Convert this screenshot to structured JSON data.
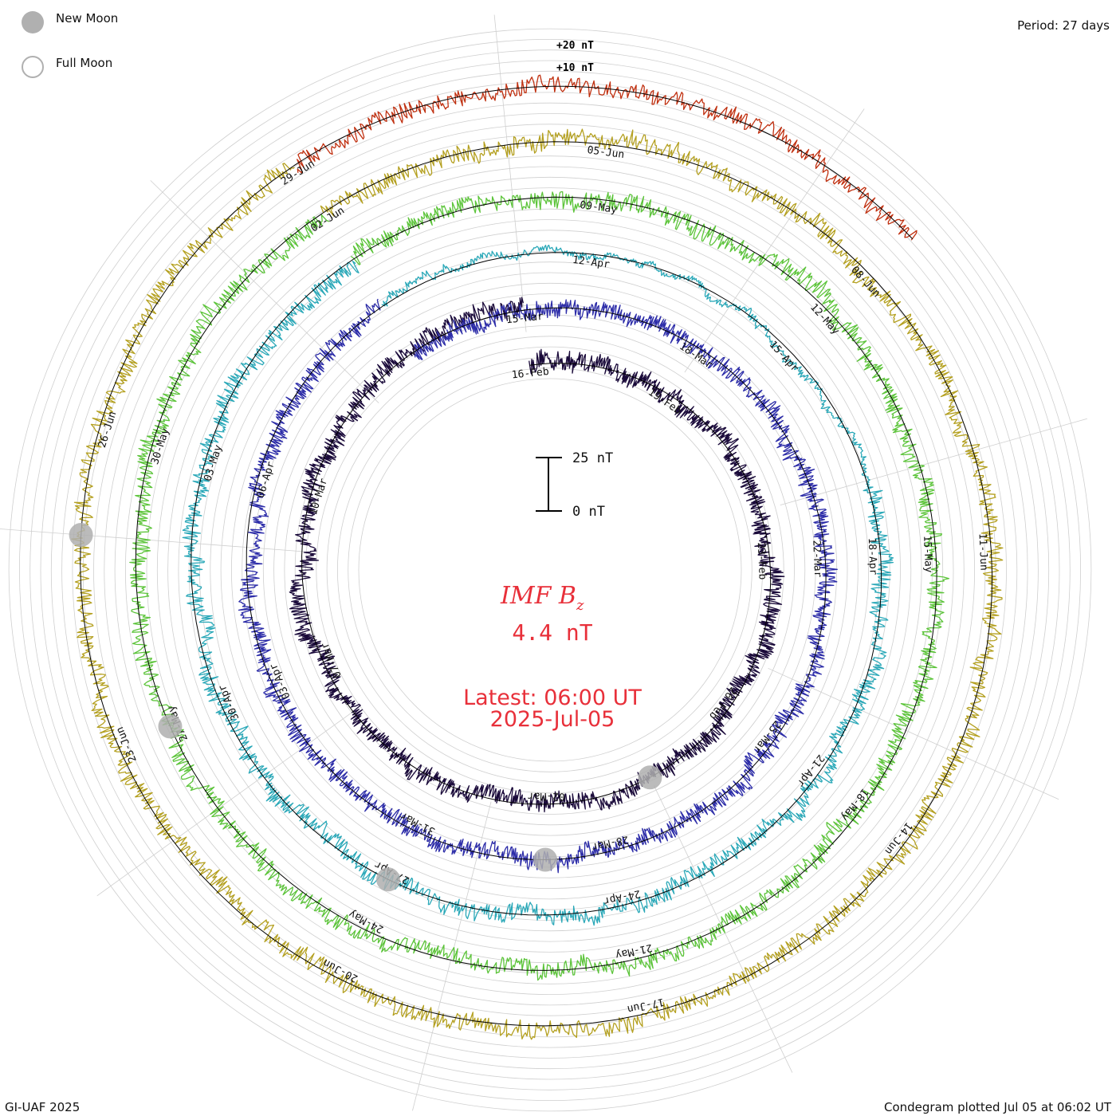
{
  "header": {
    "period": "Period: 27 days"
  },
  "legend": {
    "new_moon": {
      "label": "New Moon",
      "color": "#b0b0b0",
      "icon": "filled-circle-icon"
    },
    "full_moon": {
      "label": "Full Moon",
      "color": "#b0b0b0",
      "icon": "hollow-circle-icon"
    }
  },
  "footer": {
    "left": "GI-UAF 2025",
    "right": "Condegram plotted Jul 05 at 06:02 UT"
  },
  "center": {
    "title_main": "IMF B",
    "title_sub": "z",
    "value": "4.4 nT",
    "latest": "Latest: 06:00 UT",
    "date": "2025-Jul-05",
    "text_color": "#e8303a"
  },
  "chart_data": {
    "type": "line",
    "title": "IMF Bz",
    "layout": "condegram-spiral",
    "period_days": 27,
    "scale_bar": {
      "top_label": "25 nT",
      "bottom_label": "0 nT",
      "range_nT": [
        0,
        25
      ]
    },
    "ring_labels": [
      "+20 nT",
      "+10 nT"
    ],
    "ring_label_values_nT": [
      20,
      10
    ],
    "series": [
      {
        "name": "",
        "start_date": "2025-02-16",
        "color": "#1a0a3a",
        "pattern": "mixed",
        "labels": [
          "16-Feb",
          "19-Feb",
          "23-Feb",
          "26-Feb",
          "02-Mar",
          "07-Mar",
          "10-Mar"
        ]
      },
      {
        "name": "",
        "start_date": "2025-03-13",
        "color": "#2c2ca8",
        "pattern": "mixed",
        "labels": [
          "15-Mar",
          "18-Mar",
          "22-Mar",
          "25-Mar",
          "28-Mar",
          "31-Mar",
          "03-Apr",
          "06-Apr"
        ]
      },
      {
        "name": "",
        "start_date": "2025-04-09",
        "color": "#2aa8b8",
        "pattern": "quiet-then-active",
        "labels": [
          "12-Apr",
          "15-Apr",
          "18-Apr",
          "21-Apr",
          "24-Apr",
          "27-Apr",
          "30-Apr",
          "03-May"
        ]
      },
      {
        "name": "",
        "start_date": "2025-05-06",
        "color": "#5cc43a",
        "pattern": "active",
        "labels": [
          "09-May",
          "12-May",
          "15-May",
          "18-May",
          "21-May",
          "24-May",
          "27-May",
          "30-May"
        ]
      },
      {
        "name": "",
        "start_date": "2025-06-02",
        "color": "#b4a020",
        "pattern": "active",
        "labels": [
          "02-Jun",
          "05-Jun",
          "08-Jun",
          "11-Jun",
          "14-Jun",
          "17-Jun",
          "20-Jun",
          "23-Jun",
          "26-Jun",
          "29-Jun"
        ]
      },
      {
        "name": "",
        "start_date": "2025-06-29",
        "color": "#c03010",
        "pattern": "active",
        "labels": []
      }
    ],
    "moon_markers": [
      {
        "type": "new",
        "date": "2025-02-28"
      },
      {
        "type": "new",
        "date": "2025-03-29"
      },
      {
        "type": "new",
        "date": "2025-04-27"
      },
      {
        "type": "new",
        "date": "2025-05-27"
      },
      {
        "type": "new",
        "date": "2025-06-25"
      }
    ],
    "grid": true
  }
}
